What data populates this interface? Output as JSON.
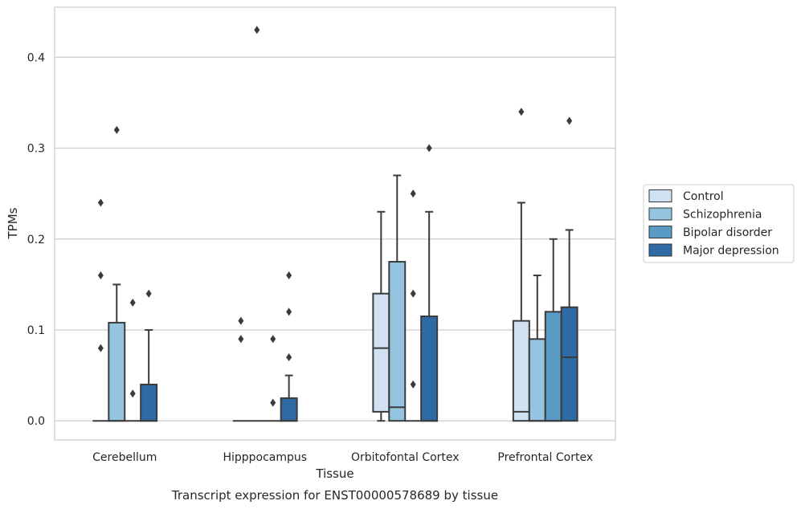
{
  "chart_data": {
    "type": "box",
    "xlabel": "Tissue",
    "ylabel": "TPMs",
    "caption": "Transcript expression for ENST00000578689 by tissue",
    "ylim": [
      -0.021,
      0.455
    ],
    "yticks": [
      "0.0",
      "0.1",
      "0.2",
      "0.3",
      "0.4"
    ],
    "grid": "horizontal",
    "legend_placement": "right",
    "categories": [
      "Cerebellum",
      "Hipppocampus",
      "Orbitofontal Cortex",
      "Prefrontal Cortex"
    ],
    "series": [
      {
        "name": "Control",
        "color": "#d0e1f2",
        "boxes": [
          {
            "q1": 0,
            "median": 0,
            "q3": 0,
            "whisker_low": 0,
            "whisker_high": 0,
            "outliers": [
              0.24,
              0.16,
              0.08
            ]
          },
          {
            "q1": 0,
            "median": 0,
            "q3": 0,
            "whisker_low": 0,
            "whisker_high": 0,
            "outliers": [
              0.11,
              0.09
            ]
          },
          {
            "q1": 0.01,
            "median": 0.08,
            "q3": 0.14,
            "whisker_low": 0,
            "whisker_high": 0.23,
            "outliers": []
          },
          {
            "q1": 0,
            "median": 0.01,
            "q3": 0.11,
            "whisker_low": 0,
            "whisker_high": 0.24,
            "outliers": [
              0.34
            ]
          }
        ]
      },
      {
        "name": "Schizophrenia",
        "color": "#94c4df",
        "boxes": [
          {
            "q1": 0,
            "median": 0,
            "q3": 0.108,
            "whisker_low": 0,
            "whisker_high": 0.15,
            "outliers": [
              0.32
            ]
          },
          {
            "q1": 0,
            "median": 0,
            "q3": 0,
            "whisker_low": 0,
            "whisker_high": 0,
            "outliers": [
              0.43
            ]
          },
          {
            "q1": 0,
            "median": 0.015,
            "q3": 0.175,
            "whisker_low": 0,
            "whisker_high": 0.27,
            "outliers": []
          },
          {
            "q1": 0,
            "median": 0,
            "q3": 0.09,
            "whisker_low": 0,
            "whisker_high": 0.16,
            "outliers": []
          }
        ]
      },
      {
        "name": "Bipolar disorder",
        "color": "#5a9bc6",
        "boxes": [
          {
            "q1": 0,
            "median": 0,
            "q3": 0,
            "whisker_low": 0,
            "whisker_high": 0,
            "outliers": [
              0.13,
              0.03
            ]
          },
          {
            "q1": 0,
            "median": 0,
            "q3": 0,
            "whisker_low": 0,
            "whisker_high": 0,
            "outliers": [
              0.09,
              0.02
            ]
          },
          {
            "q1": 0,
            "median": 0,
            "q3": 0,
            "whisker_low": 0,
            "whisker_high": 0,
            "outliers": [
              0.25,
              0.14,
              0.04
            ]
          },
          {
            "q1": 0,
            "median": 0,
            "q3": 0.12,
            "whisker_low": 0,
            "whisker_high": 0.2,
            "outliers": []
          }
        ]
      },
      {
        "name": "Major depression",
        "color": "#2e6aa5",
        "boxes": [
          {
            "q1": 0,
            "median": 0,
            "q3": 0.04,
            "whisker_low": 0,
            "whisker_high": 0.1,
            "outliers": [
              0.14
            ]
          },
          {
            "q1": 0,
            "median": 0,
            "q3": 0.025,
            "whisker_low": 0,
            "whisker_high": 0.05,
            "outliers": [
              0.16,
              0.12,
              0.07
            ]
          },
          {
            "q1": 0,
            "median": 0,
            "q3": 0.115,
            "whisker_low": 0,
            "whisker_high": 0.23,
            "outliers": [
              0.3
            ]
          },
          {
            "q1": 0,
            "median": 0.07,
            "q3": 0.125,
            "whisker_low": 0,
            "whisker_high": 0.21,
            "outliers": [
              0.33
            ]
          }
        ]
      }
    ]
  }
}
